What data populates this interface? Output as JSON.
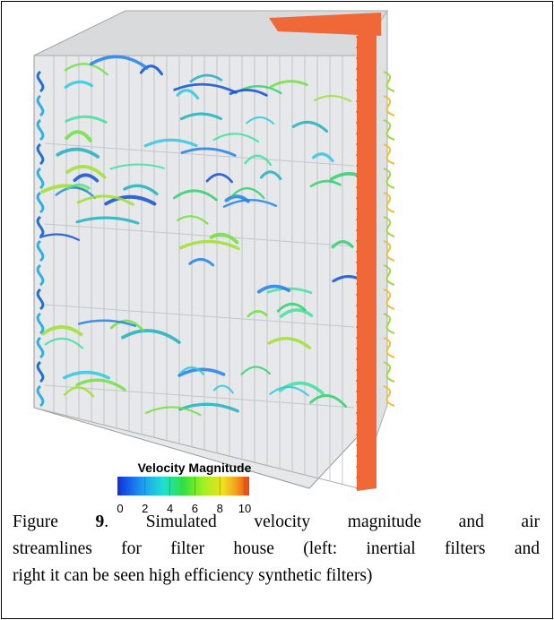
{
  "figure": {
    "colorbar": {
      "title": "Velocity Magnitude",
      "range": [
        0,
        10
      ],
      "ticks": [
        0,
        2,
        4,
        6,
        8,
        10
      ]
    },
    "caption": {
      "lines": [
        [
          "Figure ",
          "9",
          ". Simulated velocity magnitude and air"
        ],
        [
          "streamlines for filter house (left: inertial filters and"
        ],
        [
          "right it can be seen high efficiency synthetic filters)"
        ]
      ]
    }
  }
}
